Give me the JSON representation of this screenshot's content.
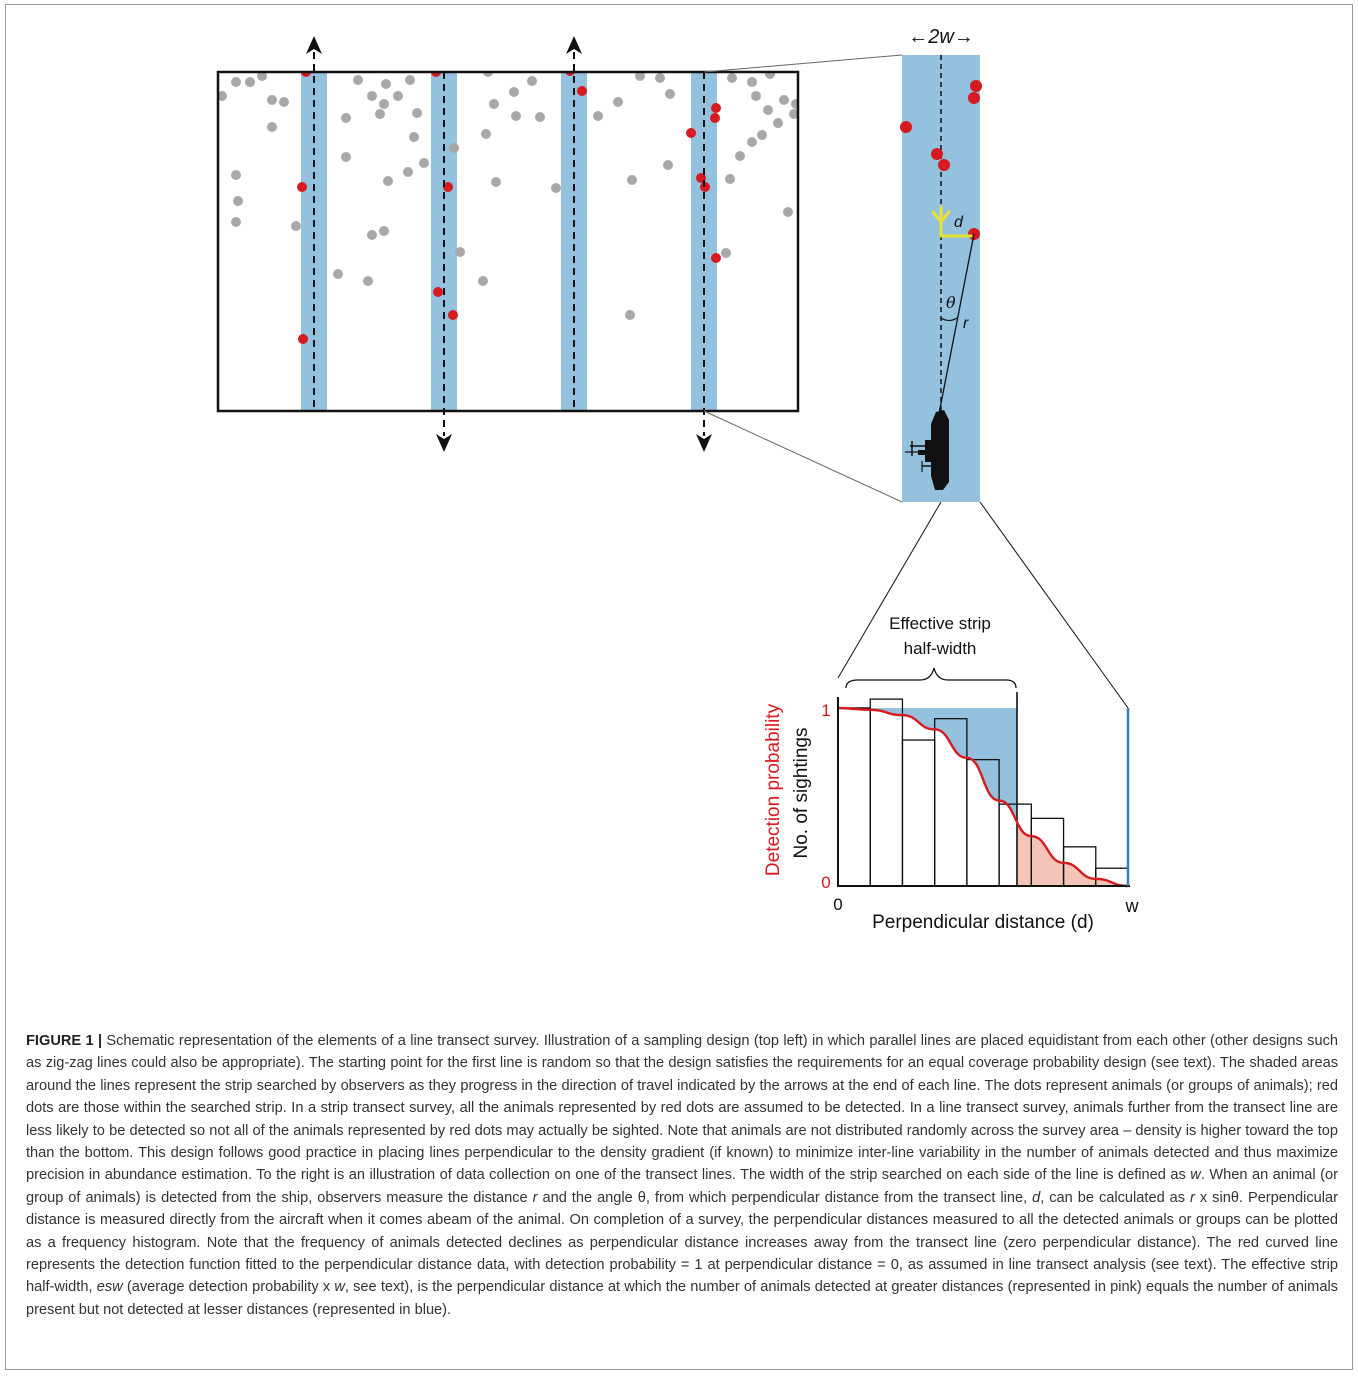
{
  "figure": {
    "width_label": "←2w→",
    "d_label": "d",
    "theta_label": "θ",
    "r_label": "r",
    "esw_label_line1": "Effective strip",
    "esw_label_line2": "half-width",
    "y_axis_red_label": "Detection probability",
    "y_axis_black_label": "No. of sightings",
    "y_tick_top": "1",
    "y_tick_bottom": "0",
    "x_tick_left": "0",
    "x_tick_right": "w",
    "x_axis_label": "Perpendicular distance (d)",
    "colors": {
      "strip_blue": "#93c1de",
      "red_dot": "#d71920",
      "grey_dot": "#a8a8a8",
      "detection_curve": "#d71920",
      "pink_area": "#f5c4b8",
      "observer_marker": "#e8e230"
    }
  },
  "chart_data": {
    "type": "bar",
    "title": "",
    "xlabel": "Perpendicular distance (d)",
    "ylabel": "No. of sightings",
    "ylabel_secondary": "Detection probability",
    "x_range": [
      "0",
      "w"
    ],
    "ylim": [
      0,
      1
    ],
    "bins": 9,
    "values": [
      1.0,
      1.05,
      0.82,
      0.94,
      0.71,
      0.46,
      0.38,
      0.22,
      0.1
    ],
    "series": [
      {
        "name": "Detection probability",
        "values": [
          1.0,
          0.99,
          0.96,
          0.88,
          0.72,
          0.48,
          0.28,
          0.13,
          0.04,
          0.0
        ]
      }
    ]
  },
  "caption": {
    "label": "FIGURE 1 |",
    "parts": [
      " Schematic representation of the elements of a line transect survey. Illustration of a sampling design (top left) in which parallel lines are placed equidistant from each other (other designs such as zig-zag lines could also be appropriate). The starting point for the first line is random so that the design satisfies the requirements for an equal coverage probability design (see text). The shaded areas around the lines represent the strip searched by observers as they progress in the direction of travel indicated by the arrows at the end of each line. The dots represent animals (or groups of animals); red dots are those within the searched strip. In a strip transect survey, all the animals represented by red dots are assumed to be detected. In a line transect survey, animals further from the transect line are less likely to be detected so not all of the animals represented by red dots may actually be sighted. Note that animals are not distributed randomly across the survey area – density is higher toward the top than the bottom. This design follows good practice in placing lines perpendicular to the density gradient (if known) to minimize inter-line variability in the number of animals detected and thus maximize precision in abundance estimation. To the right is an illustration of data collection on one of the transect lines. The width of the strip searched on each side of the line is defined as ",
      "w",
      ". When an animal (or group of animals) is detected from the ship, observers measure the distance ",
      "r",
      " and the angle θ, from which perpendicular distance from the transect line, ",
      "d",
      ", can be calculated as ",
      "r",
      " x sinθ. Perpendicular distance is measured directly from the aircraft when it comes abeam of the animal. On completion of a survey, the perpendicular distances measured to all the detected animals or groups can be plotted as a frequency histogram. Note that the frequency of animals detected declines as perpendicular distance increases away from the transect line (zero perpendicular distance). The red curved line represents the detection function fitted to the perpendicular distance data, with detection probability = 1 at perpendicular distance = 0, as assumed in line transect analysis (see text). The effective strip half-width, ",
      "esw",
      " (average detection probability x ",
      "w",
      ", see text), is the perpendicular distance at which the number of animals detected at greater distances (represented in pink) equals the number of animals present but not detected at lesser distances (represented in blue)."
    ]
  }
}
